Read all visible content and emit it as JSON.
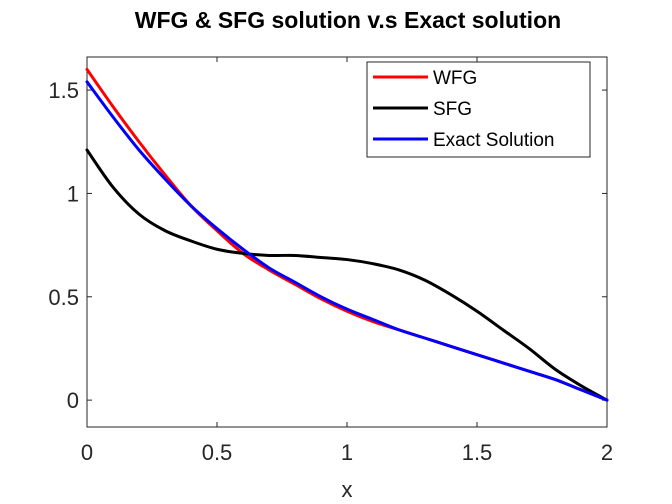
{
  "chart_data": {
    "type": "line",
    "title": "WFG & SFG solution v.s Exact solution",
    "xlabel": "x",
    "ylabel": "",
    "xlim": [
      0,
      2
    ],
    "ylim": [
      -0.13,
      1.66
    ],
    "xticks": [
      0,
      0.5,
      1,
      1.5,
      2
    ],
    "xtick_labels": [
      "0",
      "0.5",
      "1",
      "1.5",
      "2"
    ],
    "yticks": [
      0,
      0.5,
      1,
      1.5
    ],
    "ytick_labels": [
      "0",
      "0.5",
      "1",
      "1.5"
    ],
    "grid": false,
    "legend_position": "top-right",
    "series": [
      {
        "name": "WFG",
        "color": "#ff0000",
        "x": [
          0,
          0.1,
          0.2,
          0.3,
          0.4,
          0.5,
          0.6,
          0.7,
          0.8,
          0.9,
          1.0,
          1.1,
          1.2,
          1.3,
          1.4,
          1.5,
          1.6,
          1.7,
          1.8,
          1.9,
          2.0
        ],
        "y": [
          1.6,
          1.42,
          1.25,
          1.09,
          0.94,
          0.82,
          0.71,
          0.63,
          0.56,
          0.49,
          0.43,
          0.38,
          0.34,
          0.3,
          0.26,
          0.22,
          0.18,
          0.14,
          0.1,
          0.05,
          0.0
        ]
      },
      {
        "name": "SFG",
        "color": "#000000",
        "x": [
          0,
          0.1,
          0.2,
          0.3,
          0.4,
          0.5,
          0.6,
          0.7,
          0.8,
          0.9,
          1.0,
          1.1,
          1.2,
          1.3,
          1.4,
          1.5,
          1.6,
          1.7,
          1.8,
          1.9,
          2.0
        ],
        "y": [
          1.21,
          1.03,
          0.9,
          0.82,
          0.77,
          0.73,
          0.71,
          0.7,
          0.7,
          0.69,
          0.68,
          0.66,
          0.63,
          0.58,
          0.51,
          0.43,
          0.34,
          0.25,
          0.15,
          0.07,
          0.0
        ]
      },
      {
        "name": "Exact Solution",
        "color": "#0000ff",
        "x": [
          0,
          0.1,
          0.2,
          0.3,
          0.4,
          0.5,
          0.6,
          0.7,
          0.8,
          0.9,
          1.0,
          1.1,
          1.2,
          1.3,
          1.4,
          1.5,
          1.6,
          1.7,
          1.8,
          1.9,
          2.0
        ],
        "y": [
          1.54,
          1.37,
          1.21,
          1.07,
          0.94,
          0.83,
          0.73,
          0.64,
          0.57,
          0.5,
          0.44,
          0.39,
          0.34,
          0.3,
          0.26,
          0.22,
          0.18,
          0.14,
          0.1,
          0.05,
          0.0
        ]
      }
    ]
  }
}
